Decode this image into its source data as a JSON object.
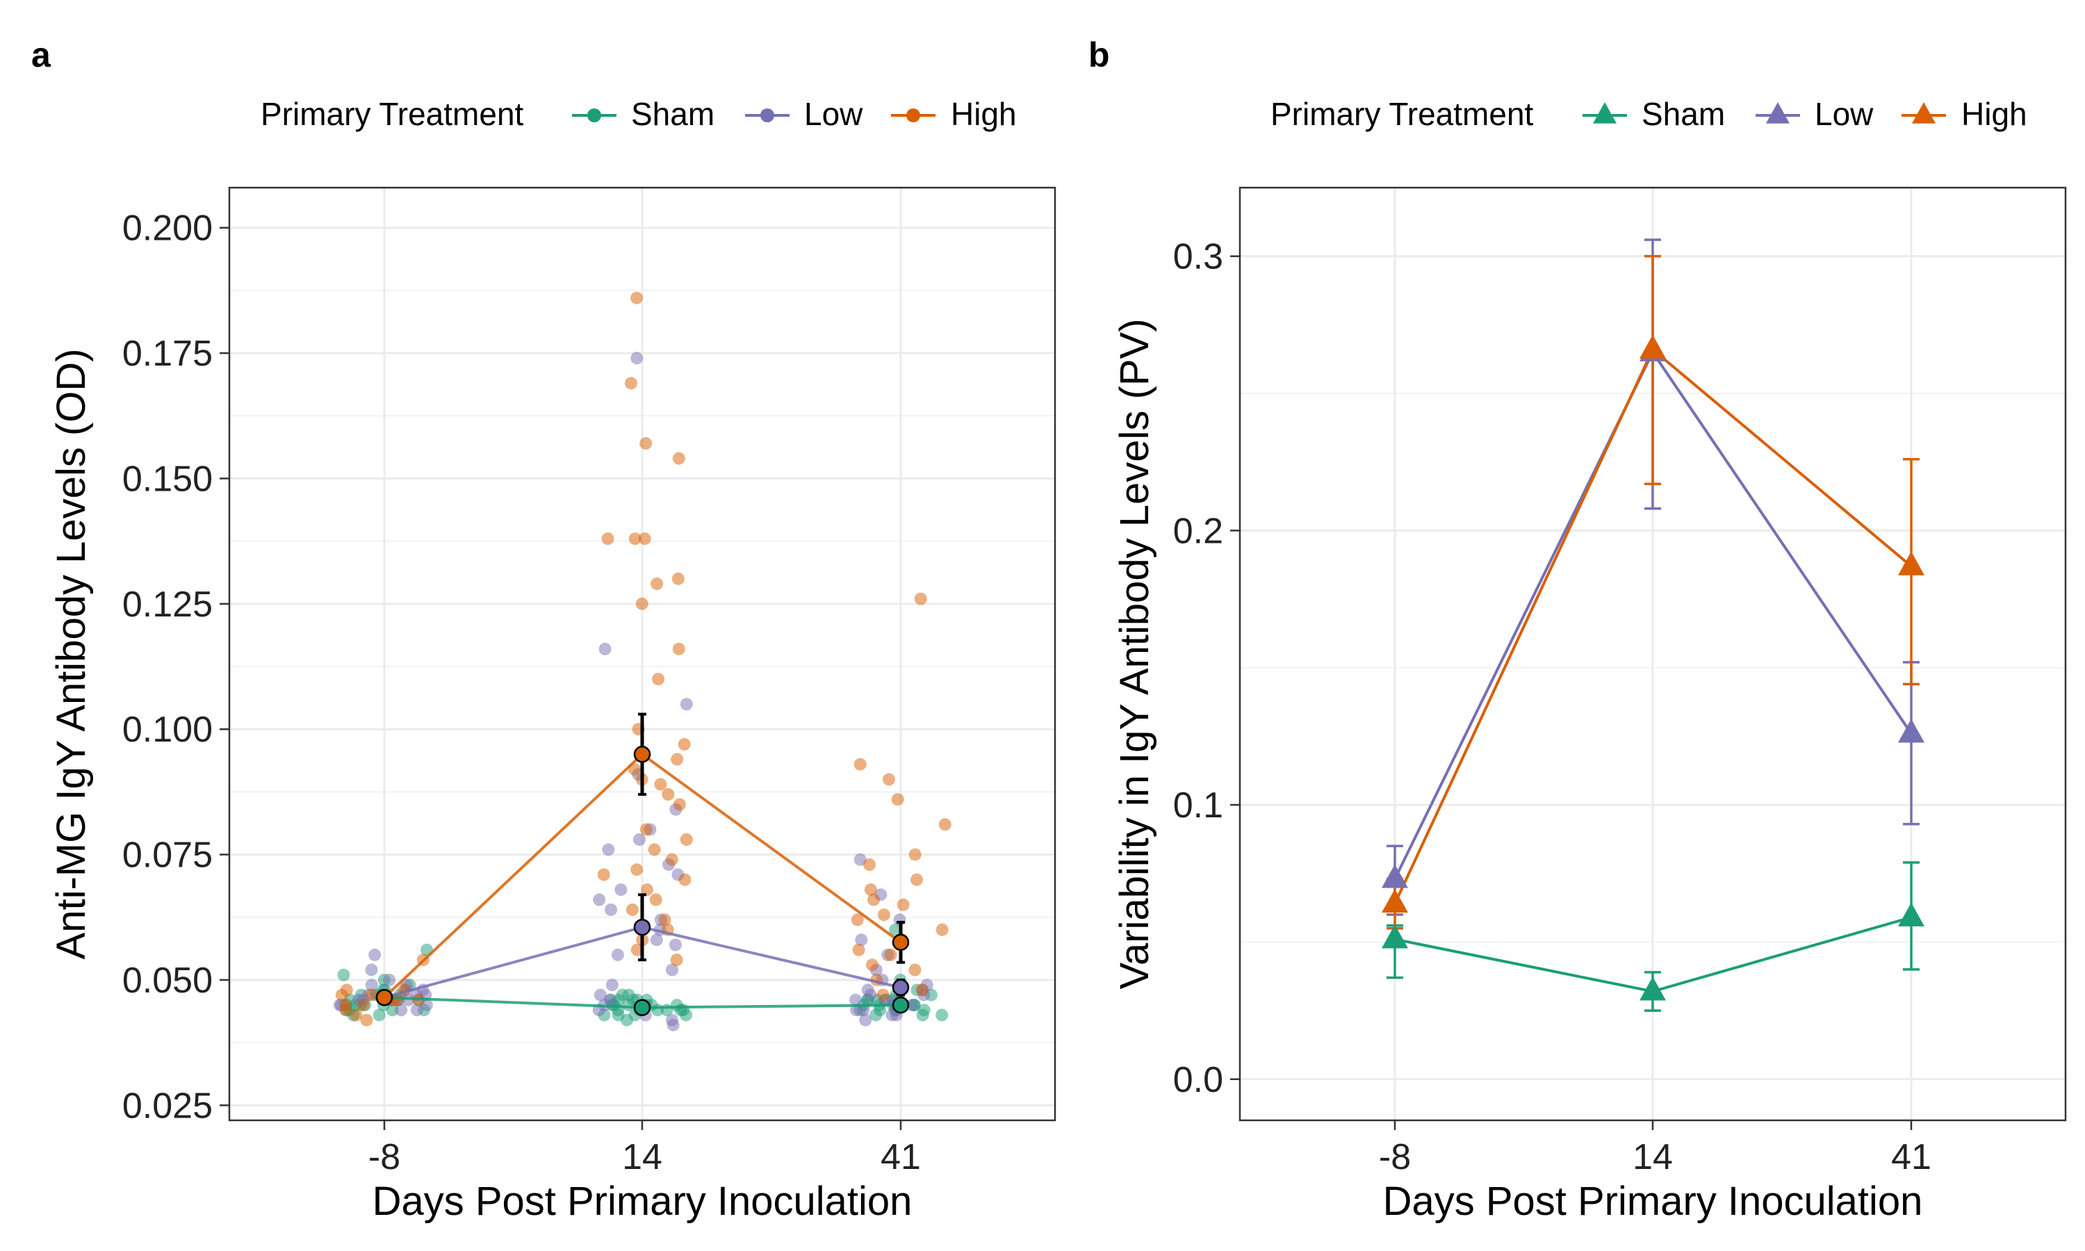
{
  "chart_data": [
    {
      "panel_label": "a",
      "type": "scatter",
      "xlabel": "Days Post Primary Inoculation",
      "ylabel": "Anti-MG IgY Antibody Levels (OD)",
      "x_categories": [
        "-8",
        "14",
        "41"
      ],
      "y_ticks": [
        "0.025",
        "0.050",
        "0.075",
        "0.100",
        "0.125",
        "0.150",
        "0.175",
        "0.200"
      ],
      "ylim": [
        0.022,
        0.208
      ],
      "grid": true,
      "legend": {
        "title": "Primary Treatment",
        "placement": "top",
        "marker": "circle",
        "entries": [
          "Sham",
          "Low",
          "High"
        ]
      },
      "series": [
        {
          "name": "Sham",
          "color": "#1b9e77",
          "mean": [
            0.0465,
            0.0445,
            0.045
          ],
          "error": [
            0.001,
            0.001,
            0.001
          ],
          "points": [
            [
              0.045,
              0.046,
              0.044,
              0.047,
              0.043,
              0.048,
              0.045,
              0.046,
              0.044,
              0.047,
              0.045,
              0.049,
              0.046,
              0.044,
              0.05,
              0.045,
              0.047,
              0.043,
              0.046,
              0.048,
              0.045,
              0.051,
              0.044,
              0.056,
              0.046,
              0.047
            ],
            [
              0.044,
              0.045,
              0.043,
              0.046,
              0.044,
              0.047,
              0.045,
              0.043,
              0.046,
              0.044,
              0.045,
              0.042,
              0.046,
              0.044,
              0.047,
              0.045,
              0.043,
              0.044,
              0.046,
              0.045,
              0.044,
              0.043,
              0.045,
              0.046
            ],
            [
              0.044,
              0.045,
              0.046,
              0.043,
              0.047,
              0.045,
              0.044,
              0.046,
              0.048,
              0.045,
              0.043,
              0.046,
              0.044,
              0.05,
              0.045,
              0.047,
              0.044,
              0.06,
              0.045,
              0.046,
              0.043,
              0.046,
              0.044
            ]
          ]
        },
        {
          "name": "Low",
          "color": "#7570b3",
          "mean": [
            0.0465,
            0.0605,
            0.0485
          ],
          "error": [
            0.001,
            0.0065,
            0.0015
          ],
          "points": [
            [
              0.046,
              0.047,
              0.045,
              0.048,
              0.044,
              0.049,
              0.046,
              0.05,
              0.045,
              0.047,
              0.052,
              0.046,
              0.055,
              0.044,
              0.048,
              0.046,
              0.047,
              0.045,
              0.049,
              0.046
            ],
            [
              0.174,
              0.116,
              0.105,
              0.091,
              0.084,
              0.08,
              0.078,
              0.076,
              0.073,
              0.071,
              0.068,
              0.066,
              0.064,
              0.062,
              0.06,
              0.058,
              0.057,
              0.055,
              0.052,
              0.049,
              0.047,
              0.045,
              0.044,
              0.043,
              0.042,
              0.041,
              0.046,
              0.044
            ],
            [
              0.074,
              0.067,
              0.062,
              0.058,
              0.055,
              0.052,
              0.05,
              0.049,
              0.048,
              0.047,
              0.046,
              0.045,
              0.044,
              0.043,
              0.042,
              0.046,
              0.045,
              0.044,
              0.047,
              0.043,
              0.048,
              0.046
            ]
          ]
        },
        {
          "name": "High",
          "color": "#d95f02",
          "mean": [
            0.0465,
            0.095,
            0.0575
          ],
          "error": [
            0.001,
            0.008,
            0.004
          ],
          "points": [
            [
              0.054,
              0.048,
              0.046,
              0.045,
              0.047,
              0.044,
              0.046,
              0.048,
              0.045,
              0.043,
              0.042,
              0.047,
              0.046
            ],
            [
              0.186,
              0.169,
              0.157,
              0.154,
              0.138,
              0.138,
              0.138,
              0.13,
              0.129,
              0.125,
              0.116,
              0.11,
              0.1,
              0.097,
              0.094,
              0.092,
              0.09,
              0.089,
              0.087,
              0.085,
              0.08,
              0.078,
              0.076,
              0.074,
              0.072,
              0.071,
              0.07,
              0.068,
              0.066,
              0.064,
              0.062,
              0.06,
              0.058,
              0.056,
              0.054
            ],
            [
              0.126,
              0.093,
              0.09,
              0.086,
              0.081,
              0.075,
              0.073,
              0.07,
              0.068,
              0.066,
              0.065,
              0.063,
              0.062,
              0.06,
              0.058,
              0.056,
              0.055,
              0.053,
              0.052,
              0.05,
              0.048,
              0.047
            ]
          ]
        }
      ]
    },
    {
      "panel_label": "b",
      "type": "line",
      "xlabel": "Days Post Primary Inoculation",
      "ylabel": "Variability in IgY Antibody Levels (PV)",
      "x_categories": [
        "-8",
        "14",
        "41"
      ],
      "y_ticks": [
        "0.0",
        "0.1",
        "0.2",
        "0.3"
      ],
      "ylim": [
        -0.015,
        0.325
      ],
      "grid": true,
      "legend": {
        "title": "Primary Treatment",
        "placement": "top",
        "marker": "triangle",
        "entries": [
          "Sham",
          "Low",
          "High"
        ]
      },
      "series": [
        {
          "name": "Sham",
          "color": "#1b9e77",
          "values": [
            0.051,
            0.032,
            0.059
          ],
          "lower": [
            0.037,
            0.025,
            0.04
          ],
          "upper": [
            0.056,
            0.039,
            0.079
          ]
        },
        {
          "name": "Low",
          "color": "#7570b3",
          "values": [
            0.073,
            0.265,
            0.126
          ],
          "lower": [
            0.06,
            0.208,
            0.093
          ],
          "upper": [
            0.085,
            0.306,
            0.152
          ]
        },
        {
          "name": "High",
          "color": "#d95f02",
          "values": [
            0.064,
            0.266,
            0.187
          ],
          "lower": [
            0.055,
            0.217,
            0.144
          ],
          "upper": [
            0.073,
            0.3,
            0.226
          ]
        }
      ]
    }
  ]
}
